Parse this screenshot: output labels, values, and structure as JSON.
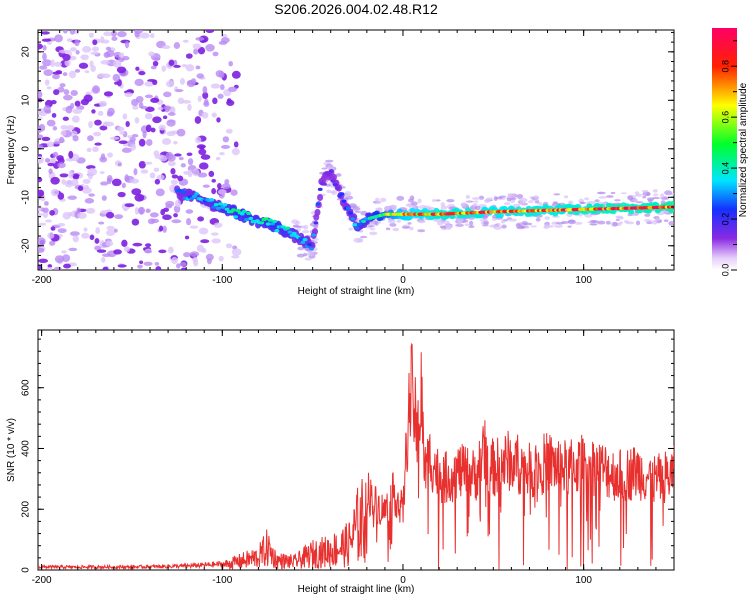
{
  "title": "S206.2026.004.02.48.R12",
  "chart_data": [
    {
      "type": "heatmap",
      "title": "S206.2026.004.02.48.R12",
      "xlabel": "Height of straight line (km)",
      "ylabel": "Frequency (Hz)",
      "xlim": [
        -202,
        150
      ],
      "ylim": [
        -25,
        24.5
      ],
      "xticks": [
        -200,
        -100,
        0,
        100
      ],
      "yticks": [
        -20,
        -10,
        0,
        10,
        20
      ],
      "colorbar": {
        "label": "Normalized spectral amplitude",
        "range": [
          0,
          0.95
        ],
        "ticks": [
          0.0,
          0.2,
          0.4,
          0.6,
          0.8
        ],
        "tick_labels": [
          "0.0",
          "0.2",
          "0.4",
          "0.6",
          "0.8"
        ],
        "colormap": "rainbow (white → violet → blue → cyan → green → yellow → red → pink)"
      },
      "ridge": {
        "description": "Dominant spectral track",
        "x": [
          -125,
          -110,
          -100,
          -90,
          -80,
          -70,
          -60,
          -50,
          -45,
          -40,
          -35,
          -30,
          -25,
          -20,
          -10,
          0,
          20,
          50,
          100,
          150
        ],
        "y": [
          -9,
          -10.5,
          -12,
          -13.5,
          -15,
          -16,
          -18,
          -20,
          -7,
          -5,
          -9,
          -13,
          -16,
          -14.5,
          -13.5,
          -13.5,
          -13.5,
          -13,
          -12.5,
          -12
        ],
        "amplitude": [
          0.3,
          0.35,
          0.4,
          0.45,
          0.4,
          0.45,
          0.35,
          0.3,
          0.2,
          0.15,
          0.2,
          0.3,
          0.35,
          0.4,
          0.6,
          0.75,
          0.85,
          0.8,
          0.85,
          0.9
        ]
      },
      "series_color": ""
    },
    {
      "type": "line",
      "title": "",
      "xlabel": "Height of straight line (km)",
      "ylabel": "SNR (10 * v/v)",
      "xlim": [
        -202,
        150
      ],
      "ylim": [
        0,
        790
      ],
      "xticks": [
        -200,
        -100,
        0,
        100
      ],
      "yticks": [
        0,
        200,
        400,
        600
      ],
      "color": "#e8302f",
      "envelope": {
        "x": [
          -202,
          -150,
          -120,
          -100,
          -90,
          -80,
          -75,
          -70,
          -60,
          -50,
          -40,
          -30,
          -25,
          -20,
          -15,
          -10,
          -5,
          0,
          3,
          5,
          8,
          10,
          12,
          15,
          20,
          25,
          30,
          40,
          45,
          50,
          60,
          70,
          80,
          90,
          100,
          110,
          120,
          130,
          140,
          150
        ],
        "y": [
          15,
          15,
          20,
          30,
          55,
          80,
          140,
          60,
          50,
          100,
          120,
          160,
          280,
          340,
          280,
          250,
          330,
          250,
          660,
          760,
          560,
          780,
          420,
          480,
          400,
          390,
          420,
          400,
          500,
          430,
          470,
          420,
          460,
          430,
          450,
          430,
          400,
          420,
          380,
          410
        ]
      }
    }
  ]
}
